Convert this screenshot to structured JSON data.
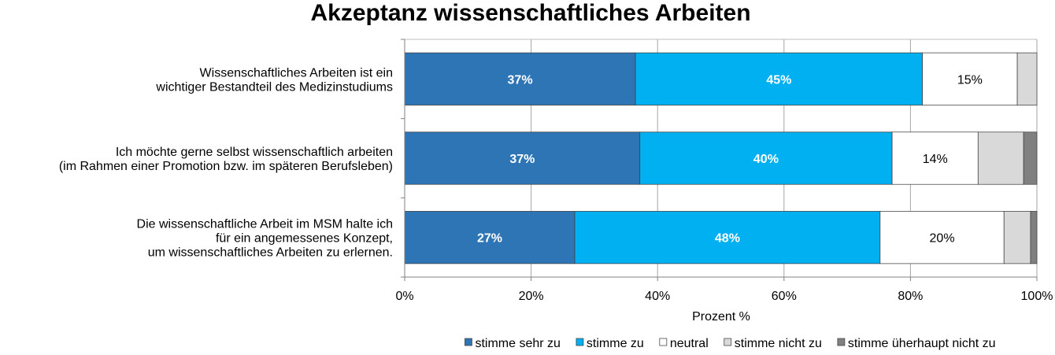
{
  "chart_data": {
    "type": "bar",
    "orientation": "horizontal",
    "stacked": "percent",
    "title": "Akzeptanz wissenschaftliches Arbeiten",
    "xlabel": "Prozent %",
    "ylabel": "",
    "xlim": [
      0,
      100
    ],
    "x_ticks": [
      "0%",
      "20%",
      "40%",
      "60%",
      "80%",
      "100%"
    ],
    "grid": "vertical",
    "legend_position": "bottom",
    "categories": [
      [
        "Wissenschaftliches Arbeiten ist ein",
        "wichtiger Bestandteil des Medizinstudiums"
      ],
      [
        "Ich möchte gerne selbst wissenschaftlich arbeiten",
        "(im Rahmen einer Promotion bzw. im späteren Berufsleben)"
      ],
      [
        "Die wissenschaftliche Arbeit im MSM halte ich",
        "für ein angemessenes Konzept,",
        "um wissenschaftliches Arbeiten zu erlernen."
      ]
    ],
    "series": [
      {
        "name": "stimme sehr zu",
        "color": "#2e75b6",
        "label_color": "#ffffff",
        "label_bold": true,
        "values": [
          36.5,
          37.2,
          26.9
        ],
        "labels": [
          "37%",
          "37%",
          "27%"
        ]
      },
      {
        "name": "stimme zu",
        "color": "#00b0f0",
        "label_color": "#ffffff",
        "label_bold": true,
        "values": [
          45.4,
          39.9,
          48.3
        ],
        "labels": [
          "45%",
          "40%",
          "48%"
        ]
      },
      {
        "name": "neutral",
        "color": "#ffffff",
        "label_color": "#000000",
        "label_bold": false,
        "values": [
          15.0,
          13.6,
          19.6
        ],
        "labels": [
          "15%",
          "14%",
          "20%"
        ]
      },
      {
        "name": "stimme nicht zu",
        "color": "#d9d9d9",
        "label_color": "#000000",
        "label_bold": false,
        "values": [
          3.1,
          7.2,
          4.2
        ],
        "labels": [
          "",
          "",
          ""
        ]
      },
      {
        "name": "stimme üherhaupt nicht zu",
        "color": "#808080",
        "label_color": "#000000",
        "label_bold": false,
        "values": [
          0.0,
          2.1,
          1.0
        ],
        "labels": [
          "",
          "",
          ""
        ]
      }
    ]
  }
}
